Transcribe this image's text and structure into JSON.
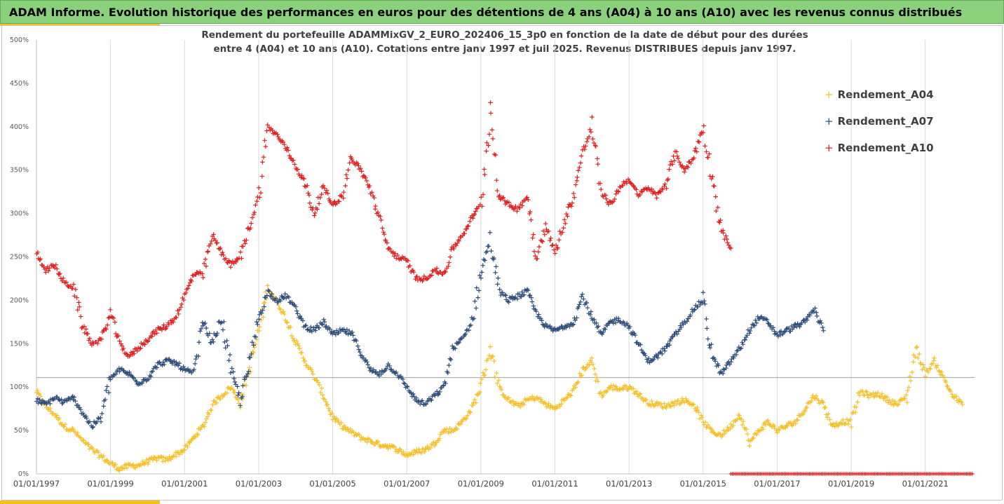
{
  "header": {
    "title": "ADAM Informe. Evolution historique des performances en euros pour des détentions de 4 ans (A04) à 10 ans (A10) avec les revenus connus distribués"
  },
  "chart_data": {
    "type": "scatter",
    "title": "",
    "subtitle_line1": "Rendement du portefeuille ADAMMixGV_2_EURO_202406_15_3p0  en fonction de la date de début pour des durées",
    "subtitle_line2": "entre 4 (A04) et 10 ans (A10). Cotations  entre janv 1997 et juil 2025. Revenus DISTRIBUES depuis janv 1997.",
    "xlabel": "",
    "ylabel": "",
    "x_range": [
      "1997-01-01",
      "2022-05-01"
    ],
    "ylim": [
      0,
      500
    ],
    "y_ticks": [
      "0%",
      "50%",
      "100%",
      "150%",
      "200%",
      "250%",
      "300%",
      "350%",
      "400%",
      "450%",
      "500%"
    ],
    "x_ticks": [
      "01/01/1997",
      "01/01/1999",
      "01/01/2001",
      "01/01/2003",
      "01/01/2005",
      "01/01/2007",
      "01/01/2009",
      "01/01/2011",
      "01/01/2013",
      "01/01/2015",
      "01/01/2017",
      "01/01/2019",
      "01/01/2021"
    ],
    "reference_line_y": 111,
    "grid": "vertical lines only",
    "legend_position": "top-right",
    "series": [
      {
        "name": "Rendement_A04",
        "color": "#f5c02c",
        "points": [
          [
            1997.0,
            95
          ],
          [
            1997.25,
            78
          ],
          [
            1997.5,
            68
          ],
          [
            1997.75,
            55
          ],
          [
            1998.0,
            50
          ],
          [
            1998.25,
            38
          ],
          [
            1998.5,
            28
          ],
          [
            1998.75,
            20
          ],
          [
            1999.0,
            12
          ],
          [
            1999.25,
            6
          ],
          [
            1999.5,
            9
          ],
          [
            1999.75,
            10
          ],
          [
            2000.0,
            14
          ],
          [
            2000.25,
            18
          ],
          [
            2000.5,
            16
          ],
          [
            2000.75,
            22
          ],
          [
            2001.0,
            28
          ],
          [
            2001.25,
            42
          ],
          [
            2001.5,
            55
          ],
          [
            2001.75,
            80
          ],
          [
            2002.0,
            90
          ],
          [
            2002.25,
            100
          ],
          [
            2002.5,
            82
          ],
          [
            2002.75,
            120
          ],
          [
            2003.0,
            165
          ],
          [
            2003.25,
            215
          ],
          [
            2003.5,
            198
          ],
          [
            2003.75,
            178
          ],
          [
            2004.0,
            152
          ],
          [
            2004.25,
            130
          ],
          [
            2004.5,
            112
          ],
          [
            2004.75,
            90
          ],
          [
            2005.0,
            65
          ],
          [
            2005.25,
            55
          ],
          [
            2005.5,
            48
          ],
          [
            2005.75,
            42
          ],
          [
            2006.0,
            38
          ],
          [
            2006.25,
            34
          ],
          [
            2006.5,
            32
          ],
          [
            2006.75,
            28
          ],
          [
            2007.0,
            22
          ],
          [
            2007.25,
            25
          ],
          [
            2007.5,
            28
          ],
          [
            2007.75,
            35
          ],
          [
            2008.0,
            50
          ],
          [
            2008.25,
            50
          ],
          [
            2008.5,
            60
          ],
          [
            2008.75,
            75
          ],
          [
            2009.0,
            100
          ],
          [
            2009.25,
            145
          ],
          [
            2009.5,
            98
          ],
          [
            2009.75,
            85
          ],
          [
            2010.0,
            78
          ],
          [
            2010.25,
            85
          ],
          [
            2010.5,
            88
          ],
          [
            2010.75,
            80
          ],
          [
            2011.0,
            75
          ],
          [
            2011.25,
            85
          ],
          [
            2011.5,
            95
          ],
          [
            2011.75,
            120
          ],
          [
            2012.0,
            130
          ],
          [
            2012.25,
            90
          ],
          [
            2012.5,
            100
          ],
          [
            2012.75,
            98
          ],
          [
            2013.0,
            100
          ],
          [
            2013.25,
            92
          ],
          [
            2013.5,
            82
          ],
          [
            2013.75,
            80
          ],
          [
            2014.0,
            78
          ],
          [
            2014.25,
            82
          ],
          [
            2014.5,
            85
          ],
          [
            2014.75,
            80
          ],
          [
            2015.0,
            60
          ],
          [
            2015.25,
            48
          ],
          [
            2015.5,
            45
          ],
          [
            2015.75,
            55
          ],
          [
            2016.0,
            70
          ],
          [
            2016.25,
            35
          ],
          [
            2016.5,
            50
          ],
          [
            2016.75,
            60
          ],
          [
            2017.0,
            50
          ],
          [
            2017.25,
            55
          ],
          [
            2017.5,
            60
          ],
          [
            2017.75,
            75
          ],
          [
            2018.0,
            90
          ],
          [
            2018.25,
            80
          ],
          [
            2018.5,
            55
          ],
          [
            2018.75,
            60
          ],
          [
            2019.0,
            60
          ],
          [
            2019.25,
            95
          ],
          [
            2019.5,
            90
          ],
          [
            2019.75,
            92
          ],
          [
            2020.0,
            85
          ],
          [
            2020.25,
            80
          ],
          [
            2020.5,
            90
          ],
          [
            2020.75,
            145
          ],
          [
            2021.0,
            115
          ],
          [
            2021.25,
            130
          ],
          [
            2021.5,
            110
          ],
          [
            2021.75,
            90
          ],
          [
            2022.0,
            80
          ]
        ]
      },
      {
        "name": "Rendement_A07",
        "color": "#2e4d7b",
        "points": [
          [
            1997.0,
            85
          ],
          [
            1997.25,
            80
          ],
          [
            1997.5,
            88
          ],
          [
            1997.75,
            82
          ],
          [
            1998.0,
            88
          ],
          [
            1998.25,
            70
          ],
          [
            1998.5,
            55
          ],
          [
            1998.75,
            65
          ],
          [
            1999.0,
            110
          ],
          [
            1999.25,
            120
          ],
          [
            1999.5,
            115
          ],
          [
            1999.75,
            105
          ],
          [
            2000.0,
            110
          ],
          [
            2000.25,
            125
          ],
          [
            2000.5,
            130
          ],
          [
            2000.75,
            128
          ],
          [
            2001.0,
            120
          ],
          [
            2001.25,
            115
          ],
          [
            2001.5,
            175
          ],
          [
            2001.75,
            150
          ],
          [
            2002.0,
            180
          ],
          [
            2002.25,
            120
          ],
          [
            2002.5,
            85
          ],
          [
            2002.75,
            125
          ],
          [
            2003.0,
            180
          ],
          [
            2003.25,
            210
          ],
          [
            2003.5,
            200
          ],
          [
            2003.75,
            205
          ],
          [
            2004.0,
            190
          ],
          [
            2004.25,
            170
          ],
          [
            2004.5,
            165
          ],
          [
            2004.75,
            175
          ],
          [
            2005.0,
            160
          ],
          [
            2005.25,
            165
          ],
          [
            2005.5,
            162
          ],
          [
            2005.75,
            140
          ],
          [
            2006.0,
            120
          ],
          [
            2006.25,
            115
          ],
          [
            2006.5,
            125
          ],
          [
            2006.75,
            115
          ],
          [
            2007.0,
            100
          ],
          [
            2007.25,
            85
          ],
          [
            2007.5,
            80
          ],
          [
            2007.75,
            90
          ],
          [
            2008.0,
            100
          ],
          [
            2008.25,
            145
          ],
          [
            2008.5,
            155
          ],
          [
            2008.75,
            175
          ],
          [
            2009.0,
            230
          ],
          [
            2009.25,
            270
          ],
          [
            2009.5,
            210
          ],
          [
            2009.75,
            200
          ],
          [
            2010.0,
            205
          ],
          [
            2010.25,
            210
          ],
          [
            2010.5,
            185
          ],
          [
            2010.75,
            170
          ],
          [
            2011.0,
            165
          ],
          [
            2011.25,
            170
          ],
          [
            2011.5,
            175
          ],
          [
            2011.75,
            205
          ],
          [
            2012.0,
            180
          ],
          [
            2012.25,
            160
          ],
          [
            2012.5,
            175
          ],
          [
            2012.75,
            178
          ],
          [
            2013.0,
            170
          ],
          [
            2013.25,
            150
          ],
          [
            2013.5,
            130
          ],
          [
            2013.75,
            135
          ],
          [
            2014.0,
            145
          ],
          [
            2014.25,
            160
          ],
          [
            2014.5,
            175
          ],
          [
            2014.75,
            190
          ],
          [
            2015.0,
            200
          ],
          [
            2015.25,
            135
          ],
          [
            2015.5,
            115
          ],
          [
            2015.75,
            130
          ],
          [
            2016.0,
            145
          ],
          [
            2016.25,
            165
          ],
          [
            2016.5,
            180
          ],
          [
            2016.75,
            175
          ],
          [
            2017.0,
            160
          ],
          [
            2017.25,
            165
          ],
          [
            2017.5,
            170
          ],
          [
            2017.75,
            175
          ],
          [
            2018.0,
            190
          ],
          [
            2018.25,
            165
          ]
        ]
      },
      {
        "name": "Rendement_A10",
        "color": "#e02020",
        "points": [
          [
            1997.0,
            255
          ],
          [
            1997.25,
            235
          ],
          [
            1997.5,
            240
          ],
          [
            1997.75,
            220
          ],
          [
            1998.0,
            215
          ],
          [
            1998.25,
            170
          ],
          [
            1998.5,
            150
          ],
          [
            1998.75,
            155
          ],
          [
            1999.0,
            185
          ],
          [
            1999.25,
            150
          ],
          [
            1999.5,
            135
          ],
          [
            1999.75,
            145
          ],
          [
            2000.0,
            155
          ],
          [
            2000.25,
            165
          ],
          [
            2000.5,
            170
          ],
          [
            2000.75,
            180
          ],
          [
            2001.0,
            205
          ],
          [
            2001.25,
            230
          ],
          [
            2001.5,
            230
          ],
          [
            2001.75,
            275
          ],
          [
            2002.0,
            255
          ],
          [
            2002.25,
            240
          ],
          [
            2002.5,
            250
          ],
          [
            2002.75,
            285
          ],
          [
            2003.0,
            320
          ],
          [
            2003.25,
            400
          ],
          [
            2003.5,
            390
          ],
          [
            2003.75,
            375
          ],
          [
            2004.0,
            355
          ],
          [
            2004.25,
            335
          ],
          [
            2004.5,
            300
          ],
          [
            2004.75,
            330
          ],
          [
            2005.0,
            310
          ],
          [
            2005.25,
            320
          ],
          [
            2005.5,
            365
          ],
          [
            2005.75,
            350
          ],
          [
            2006.0,
            330
          ],
          [
            2006.25,
            295
          ],
          [
            2006.5,
            260
          ],
          [
            2006.75,
            250
          ],
          [
            2007.0,
            245
          ],
          [
            2007.25,
            225
          ],
          [
            2007.5,
            225
          ],
          [
            2007.75,
            235
          ],
          [
            2008.0,
            230
          ],
          [
            2008.25,
            260
          ],
          [
            2008.5,
            275
          ],
          [
            2008.75,
            295
          ],
          [
            2009.0,
            310
          ],
          [
            2009.25,
            420
          ],
          [
            2009.5,
            320
          ],
          [
            2009.75,
            310
          ],
          [
            2010.0,
            305
          ],
          [
            2010.25,
            320
          ],
          [
            2010.5,
            250
          ],
          [
            2010.75,
            285
          ],
          [
            2011.0,
            255
          ],
          [
            2011.25,
            290
          ],
          [
            2011.5,
            320
          ],
          [
            2011.75,
            370
          ],
          [
            2012.0,
            400
          ],
          [
            2012.25,
            325
          ],
          [
            2012.5,
            310
          ],
          [
            2012.75,
            330
          ],
          [
            2013.0,
            340
          ],
          [
            2013.25,
            320
          ],
          [
            2013.5,
            330
          ],
          [
            2013.75,
            320
          ],
          [
            2014.0,
            335
          ],
          [
            2014.25,
            370
          ],
          [
            2014.5,
            350
          ],
          [
            2014.75,
            365
          ],
          [
            2015.0,
            400
          ],
          [
            2015.25,
            340
          ],
          [
            2015.5,
            280
          ],
          [
            2015.75,
            260
          ]
        ]
      },
      {
        "name": "",
        "color": "#e02020",
        "zero_band": {
          "from": 2015.75,
          "to": 2022.3,
          "value": 0
        }
      }
    ]
  },
  "legend": {
    "items": [
      {
        "label": "Rendement_A04",
        "color": "#f5c02c",
        "marker": "+"
      },
      {
        "label": "Rendement_A07",
        "color": "#2e4d7b",
        "marker": "+"
      },
      {
        "label": "Rendement_A10",
        "color": "#e02020",
        "marker": "+"
      }
    ]
  }
}
